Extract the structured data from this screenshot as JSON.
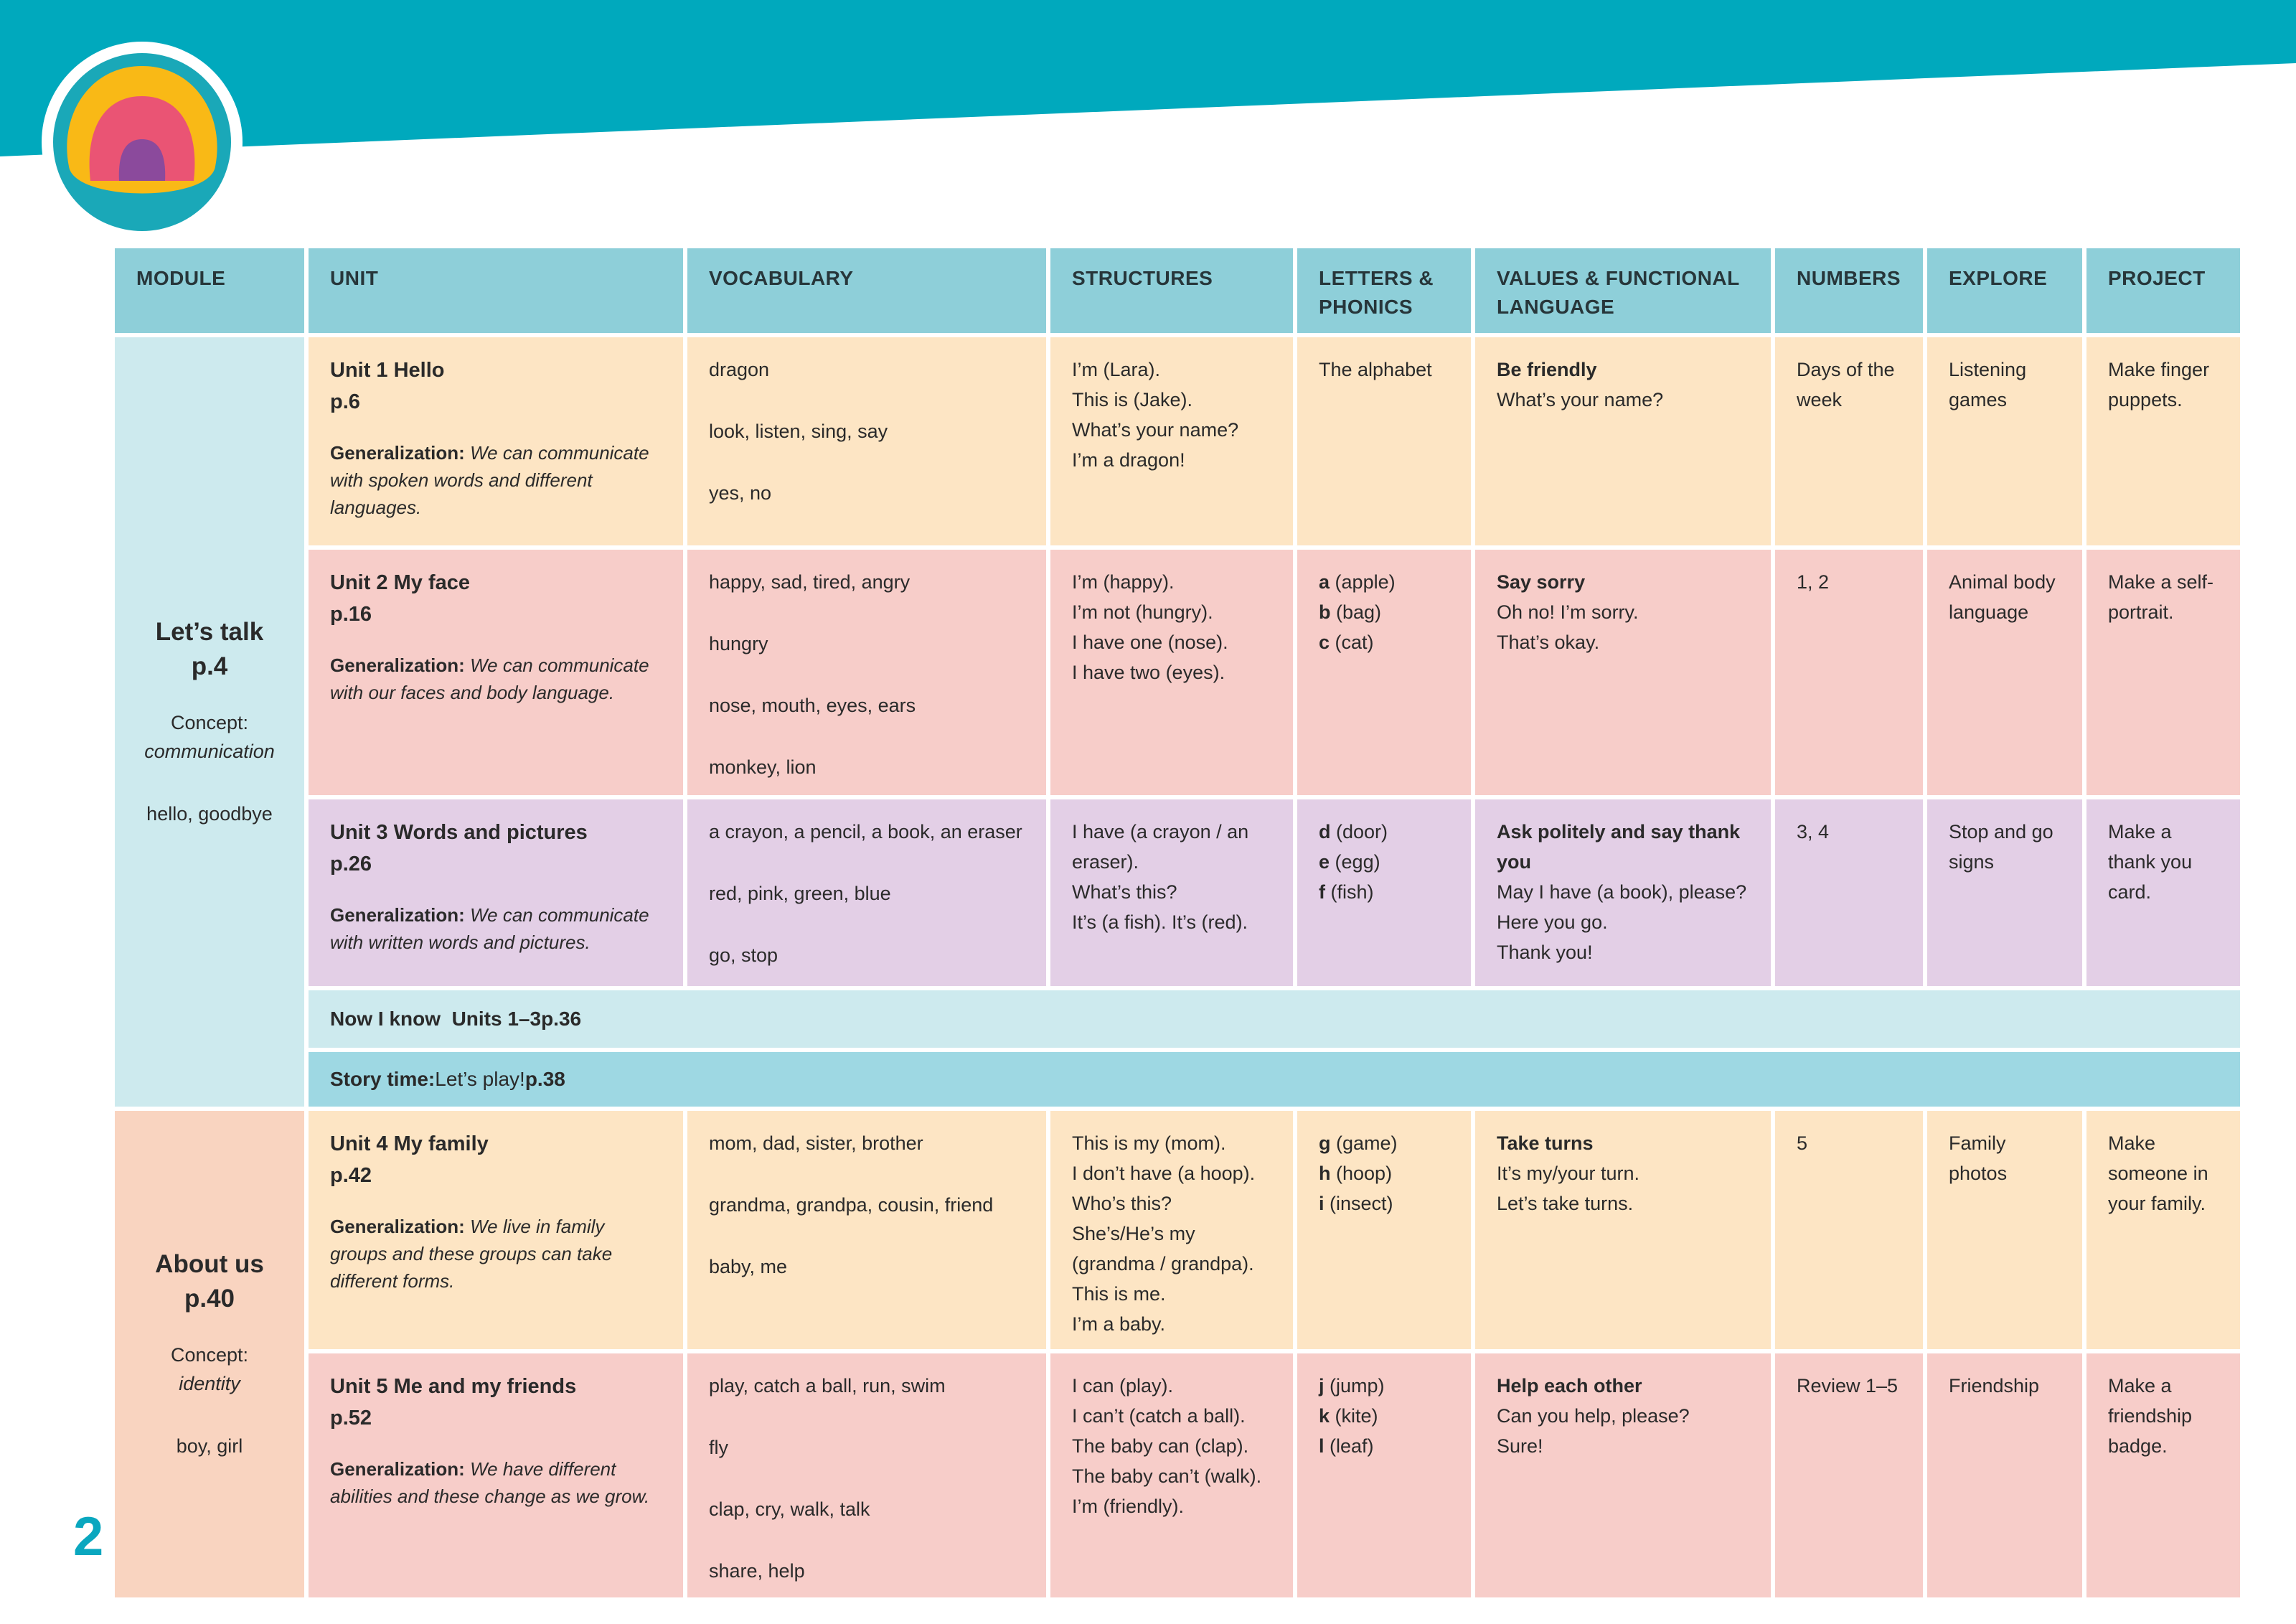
{
  "page_number": "2",
  "colors": {
    "banner": "#00a9bd",
    "header": "#8ecfd9",
    "yellow": "#fde5c4",
    "pink": "#f7cdc9",
    "purple": "#e3cfe6"
  },
  "headers": [
    "MODULE",
    "UNIT",
    "VOCABULARY",
    "STRUCTURES",
    "LETTERS & PHONICS",
    "VALUES & FUNCTIONAL LANGUAGE",
    "NUMBERS",
    "EXPLORE",
    "PROJECT"
  ],
  "modules": [
    {
      "name": "Let’s talk",
      "page": "p.4",
      "concept_label": "Concept:",
      "concept": "communication",
      "words": "hello, goodbye"
    },
    {
      "name": "About us",
      "page": "p.40",
      "concept_label": "Concept:",
      "concept": "identity",
      "words": "boy, girl"
    }
  ],
  "units": [
    {
      "title": "Unit 1  Hello",
      "page": "p.6",
      "gen_label": "Generalization:",
      "gen_text": "We can communicate with spoken words and different languages.",
      "vocab": [
        "dragon",
        "look, listen, sing, say",
        "yes, no"
      ],
      "structures": [
        "I’m (Lara).",
        "This is (Jake).",
        "What’s your name?",
        "I’m a dragon!"
      ],
      "phonics": [
        {
          "letter": "",
          "word": "The alphabet"
        }
      ],
      "values_title": "Be friendly",
      "values": [
        "What’s your name?"
      ],
      "numbers": "Days of the week",
      "explore": "Listening games",
      "project": "Make finger puppets."
    },
    {
      "title": "Unit 2  My face",
      "page": "p.16",
      "gen_label": "Generalization:",
      "gen_text": "We can communicate with our faces and body language.",
      "vocab": [
        "happy, sad, tired, angry",
        "hungry",
        "nose, mouth, eyes, ears",
        "monkey, lion"
      ],
      "structures": [
        "I’m (happy).",
        "I’m not (hungry).",
        "I have one (nose).",
        "I have two (eyes)."
      ],
      "phonics": [
        {
          "letter": "a",
          "word": "(apple)"
        },
        {
          "letter": "b",
          "word": "(bag)"
        },
        {
          "letter": "c",
          "word": "(cat)"
        }
      ],
      "values_title": "Say sorry",
      "values": [
        "Oh no! I’m sorry.",
        "That’s okay."
      ],
      "numbers": "1, 2",
      "explore": "Animal body language",
      "project": "Make a self-portrait."
    },
    {
      "title": "Unit 3  Words and pictures",
      "page": "p.26",
      "gen_label": "Generalization:",
      "gen_text": "We can communicate with written words and pictures.",
      "vocab": [
        "a crayon, a pencil, a book, an eraser",
        "red, pink, green, blue",
        "go, stop"
      ],
      "structures": [
        "I have (a crayon / an eraser).",
        "What’s this?",
        "It’s (a fish). It’s (red)."
      ],
      "phonics": [
        {
          "letter": "d",
          "word": "(door)"
        },
        {
          "letter": "e",
          "word": "(egg)"
        },
        {
          "letter": "f",
          "word": "(fish)"
        }
      ],
      "values_title": "Ask politely and say thank you",
      "values": [
        "May I have (a book), please?",
        "Here you go.",
        "Thank you!"
      ],
      "numbers": "3, 4",
      "explore": "Stop and go signs",
      "project": "Make a thank you card."
    },
    {
      "title": "Unit 4  My family",
      "page": "p.42",
      "gen_label": "Generalization:",
      "gen_text": "We live in family groups and these groups can take different forms.",
      "vocab": [
        "mom, dad, sister, brother",
        "grandma, grandpa, cousin, friend",
        "baby, me"
      ],
      "structures": [
        "This is my (mom).",
        "I don’t have (a hoop).",
        "Who’s this?",
        "She’s/He’s my (grandma / grandpa).",
        "This is me.",
        "I’m a baby."
      ],
      "phonics": [
        {
          "letter": "g",
          "word": "(game)"
        },
        {
          "letter": "h",
          "word": "(hoop)"
        },
        {
          "letter": "i",
          "word": "(insect)"
        }
      ],
      "values_title": "Take turns",
      "values": [
        "It’s my/your turn.",
        "Let’s take turns."
      ],
      "numbers": "5",
      "explore": "Family photos",
      "project": "Make someone in your family."
    },
    {
      "title": "Unit 5  Me and my friends",
      "page": "p.52",
      "gen_label": "Generalization:",
      "gen_text": "We have different abilities and these change as we grow.",
      "vocab": [
        "play, catch a ball, run, swim",
        "fly",
        "clap, cry, walk, talk",
        "share, help"
      ],
      "structures": [
        "I can (play).",
        "I can’t (catch a ball).",
        "The baby can (clap).",
        "The baby can’t (walk).",
        "I’m (friendly)."
      ],
      "phonics": [
        {
          "letter": "j",
          "word": "(jump)"
        },
        {
          "letter": "k",
          "word": "(kite)"
        },
        {
          "letter": "l",
          "word": "(leaf)"
        }
      ],
      "values_title": "Help each other",
      "values": [
        "Can you help, please?",
        "Sure!"
      ],
      "numbers": "Review 1–5",
      "explore": "Friendship",
      "project": "Make a friendship badge."
    }
  ],
  "now_i_know": {
    "label": "Now I know",
    "units": "Units 1–3",
    "page": "p.36"
  },
  "story_time": {
    "label": "Story time:",
    "title": "Let’s play!",
    "page": "p.38"
  }
}
